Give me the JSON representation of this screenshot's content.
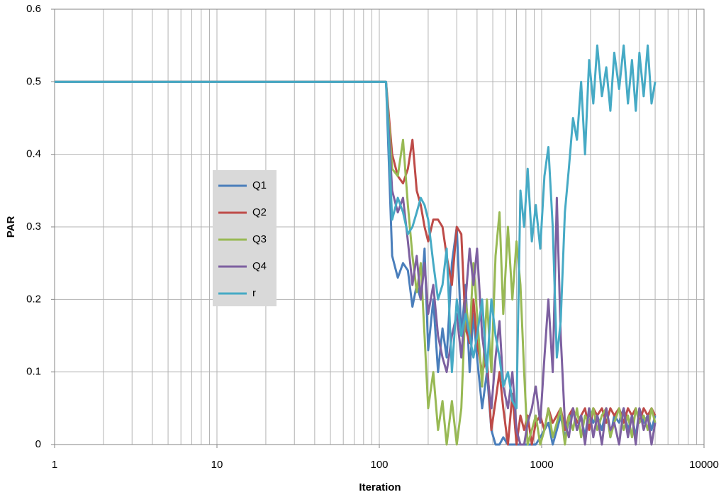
{
  "chart_data": {
    "type": "line",
    "x_label": "Iteration",
    "y_label": "PAR",
    "x_log_scale": true,
    "grid": true,
    "legend_position": "center-left",
    "xlim": [
      1,
      10000
    ],
    "xticks": [
      1,
      10,
      100,
      1000,
      10000
    ],
    "xminor": [
      2,
      3,
      4,
      5,
      6,
      7,
      8,
      9,
      20,
      30,
      40,
      50,
      60,
      70,
      80,
      90,
      200,
      300,
      400,
      500,
      600,
      700,
      800,
      900,
      2000,
      3000,
      4000,
      5000,
      6000,
      7000,
      8000,
      9000
    ],
    "ylim": [
      0,
      0.6
    ],
    "yticks": [
      0,
      0.1,
      0.2,
      0.3,
      0.4,
      0.5,
      0.6
    ],
    "x": [
      1,
      110,
      120,
      130,
      140,
      150,
      160,
      170,
      180,
      190,
      200,
      215,
      230,
      245,
      260,
      280,
      300,
      320,
      340,
      360,
      380,
      400,
      430,
      460,
      490,
      520,
      550,
      580,
      620,
      660,
      700,
      740,
      780,
      820,
      870,
      920,
      980,
      1040,
      1100,
      1170,
      1240,
      1310,
      1390,
      1470,
      1560,
      1650,
      1750,
      1850,
      1960,
      2080,
      2200,
      2350,
      2500,
      2650,
      2800,
      3000,
      3200,
      3400,
      3600,
      3800,
      4000,
      4250,
      4500,
      4750,
      5000
    ],
    "series": [
      {
        "name": "Q1",
        "color": "#4a7ebb",
        "values": [
          0.5,
          0.5,
          0.26,
          0.23,
          0.25,
          0.24,
          0.19,
          0.22,
          0.2,
          0.27,
          0.13,
          0.2,
          0.1,
          0.16,
          0.12,
          0.25,
          0.3,
          0.15,
          0.22,
          0.1,
          0.18,
          0.12,
          0.05,
          0.1,
          0.02,
          0,
          0,
          0.01,
          0,
          0,
          0,
          0,
          0,
          0,
          0,
          0,
          0.01,
          0.02,
          0.03,
          0,
          0.02,
          0.04,
          0.01,
          0.03,
          0.05,
          0.02,
          0.04,
          0.01,
          0.05,
          0.03,
          0.04,
          0.02,
          0.05,
          0.01,
          0.04,
          0.03,
          0.05,
          0.02,
          0.04,
          0.01,
          0.05,
          0.03,
          0.04,
          0.02,
          0.04
        ]
      },
      {
        "name": "Q2",
        "color": "#be4b48",
        "values": [
          0.5,
          0.5,
          0.4,
          0.37,
          0.36,
          0.38,
          0.42,
          0.35,
          0.33,
          0.3,
          0.28,
          0.31,
          0.31,
          0.3,
          0.26,
          0.22,
          0.3,
          0.29,
          0.16,
          0.14,
          0.2,
          0.14,
          0.1,
          0.12,
          0.02,
          0.06,
          0.1,
          0.05,
          0,
          0.07,
          0,
          0.04,
          0.02,
          0.04,
          0,
          0.03,
          0.04,
          0.02,
          0.05,
          0.03,
          0.04,
          0.05,
          0.02,
          0.04,
          0.05,
          0.03,
          0.04,
          0.05,
          0.02,
          0.05,
          0.04,
          0.05,
          0.03,
          0.05,
          0.04,
          0.05,
          0.03,
          0.05,
          0.04,
          0.05,
          0.03,
          0.05,
          0.04,
          0.05,
          0.04
        ]
      },
      {
        "name": "Q3",
        "color": "#98b954",
        "values": [
          0.5,
          0.5,
          0.38,
          0.37,
          0.42,
          0.33,
          0.26,
          0.21,
          0.25,
          0.15,
          0.05,
          0.1,
          0.02,
          0.06,
          0,
          0.06,
          0,
          0.05,
          0.2,
          0.15,
          0.25,
          0.18,
          0.08,
          0.2,
          0.1,
          0.26,
          0.32,
          0.18,
          0.3,
          0.2,
          0.28,
          0.22,
          0.1,
          0,
          0.02,
          0.04,
          0,
          0.02,
          0.05,
          0.01,
          0.03,
          0.05,
          0,
          0.04,
          0.02,
          0.05,
          0.01,
          0.04,
          0.03,
          0.05,
          0.02,
          0.04,
          0.05,
          0.01,
          0.03,
          0.05,
          0.02,
          0.04,
          0.01,
          0.05,
          0.03,
          0.04,
          0.02,
          0.05,
          0.03
        ]
      },
      {
        "name": "Q4",
        "color": "#7d60a0",
        "values": [
          0.5,
          0.5,
          0.35,
          0.32,
          0.34,
          0.28,
          0.22,
          0.26,
          0.2,
          0.25,
          0.18,
          0.22,
          0.15,
          0.12,
          0.1,
          0.15,
          0.18,
          0.12,
          0.2,
          0.27,
          0.22,
          0.27,
          0.15,
          0.1,
          0.05,
          0.12,
          0.17,
          0.08,
          0.05,
          0.1,
          0.02,
          0,
          0,
          0.03,
          0.05,
          0.08,
          0.03,
          0.12,
          0.2,
          0.1,
          0.34,
          0.15,
          0.03,
          0.01,
          0.05,
          0.02,
          0.04,
          0,
          0.05,
          0.01,
          0.04,
          0,
          0.05,
          0.02,
          0.03,
          0,
          0.05,
          0.01,
          0.04,
          0,
          0.05,
          0.02,
          0.04,
          0,
          0.03
        ]
      },
      {
        "name": "r",
        "color": "#46aac5",
        "values": [
          0.5,
          0.5,
          0.31,
          0.34,
          0.32,
          0.29,
          0.3,
          0.32,
          0.34,
          0.33,
          0.31,
          0.25,
          0.2,
          0.22,
          0.27,
          0.1,
          0.2,
          0.15,
          0.18,
          0.15,
          0.12,
          0.15,
          0.2,
          0.1,
          0.2,
          0.15,
          0.12,
          0.08,
          0.1,
          0.06,
          0.05,
          0.35,
          0.3,
          0.38,
          0.28,
          0.33,
          0.27,
          0.37,
          0.41,
          0.3,
          0.12,
          0.17,
          0.32,
          0.38,
          0.45,
          0.42,
          0.5,
          0.4,
          0.53,
          0.47,
          0.55,
          0.48,
          0.52,
          0.46,
          0.54,
          0.49,
          0.55,
          0.47,
          0.53,
          0.46,
          0.54,
          0.48,
          0.55,
          0.47,
          0.5
        ]
      }
    ]
  }
}
